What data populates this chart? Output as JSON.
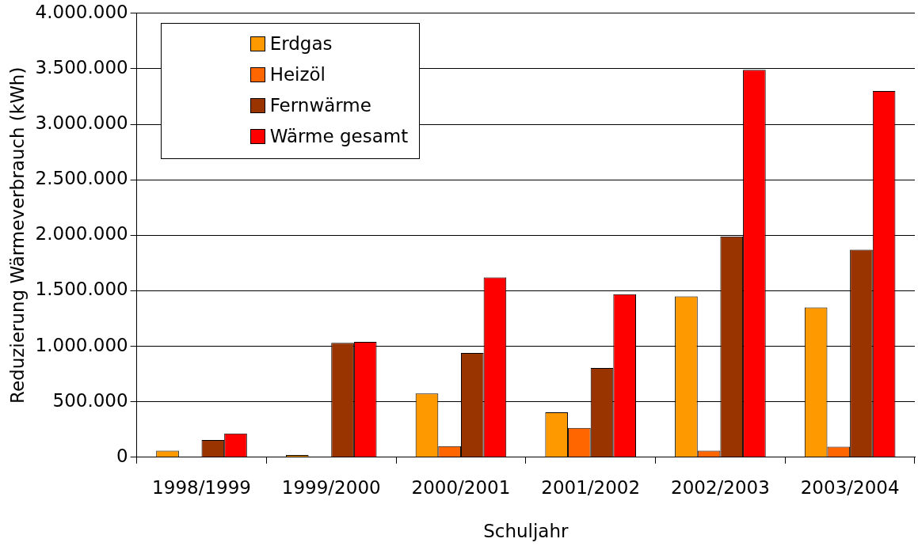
{
  "chart_data": {
    "type": "bar",
    "xlabel": "Schuljahr",
    "ylabel": "Reduzierung Wärmeverbrauch (kWh)",
    "categories": [
      "1998/1999",
      "1999/2000",
      "2000/2001",
      "2001/2002",
      "2002/2003",
      "2003/2004"
    ],
    "series": [
      {
        "name": "Erdgas",
        "color": "#ff9900",
        "values": [
          60000,
          20000,
          575000,
          405000,
          1450000,
          1350000
        ]
      },
      {
        "name": "Heizöl",
        "color": "#ff6600",
        "values": [
          null,
          null,
          100000,
          265000,
          60000,
          95000
        ]
      },
      {
        "name": "Fernwärme",
        "color": "#993300",
        "values": [
          155000,
          1030000,
          940000,
          805000,
          1990000,
          1870000
        ]
      },
      {
        "name": "Wärme gesamt",
        "color": "#ff0000",
        "values": [
          215000,
          1040000,
          1620000,
          1470000,
          3490000,
          3300000
        ]
      }
    ],
    "ylim": [
      0,
      4000000
    ],
    "yticks": [
      {
        "value": 0,
        "label": "0"
      },
      {
        "value": 500000,
        "label": "500.000"
      },
      {
        "value": 1000000,
        "label": "1.000.000"
      },
      {
        "value": 1500000,
        "label": "1.500.000"
      },
      {
        "value": 2000000,
        "label": "2.000.000"
      },
      {
        "value": 2500000,
        "label": "2.500.000"
      },
      {
        "value": 3000000,
        "label": "3.000.000"
      },
      {
        "value": 3500000,
        "label": "3.500.000"
      },
      {
        "value": 4000000,
        "label": "4.000.000"
      }
    ],
    "grid": "y",
    "legend": "top left"
  }
}
